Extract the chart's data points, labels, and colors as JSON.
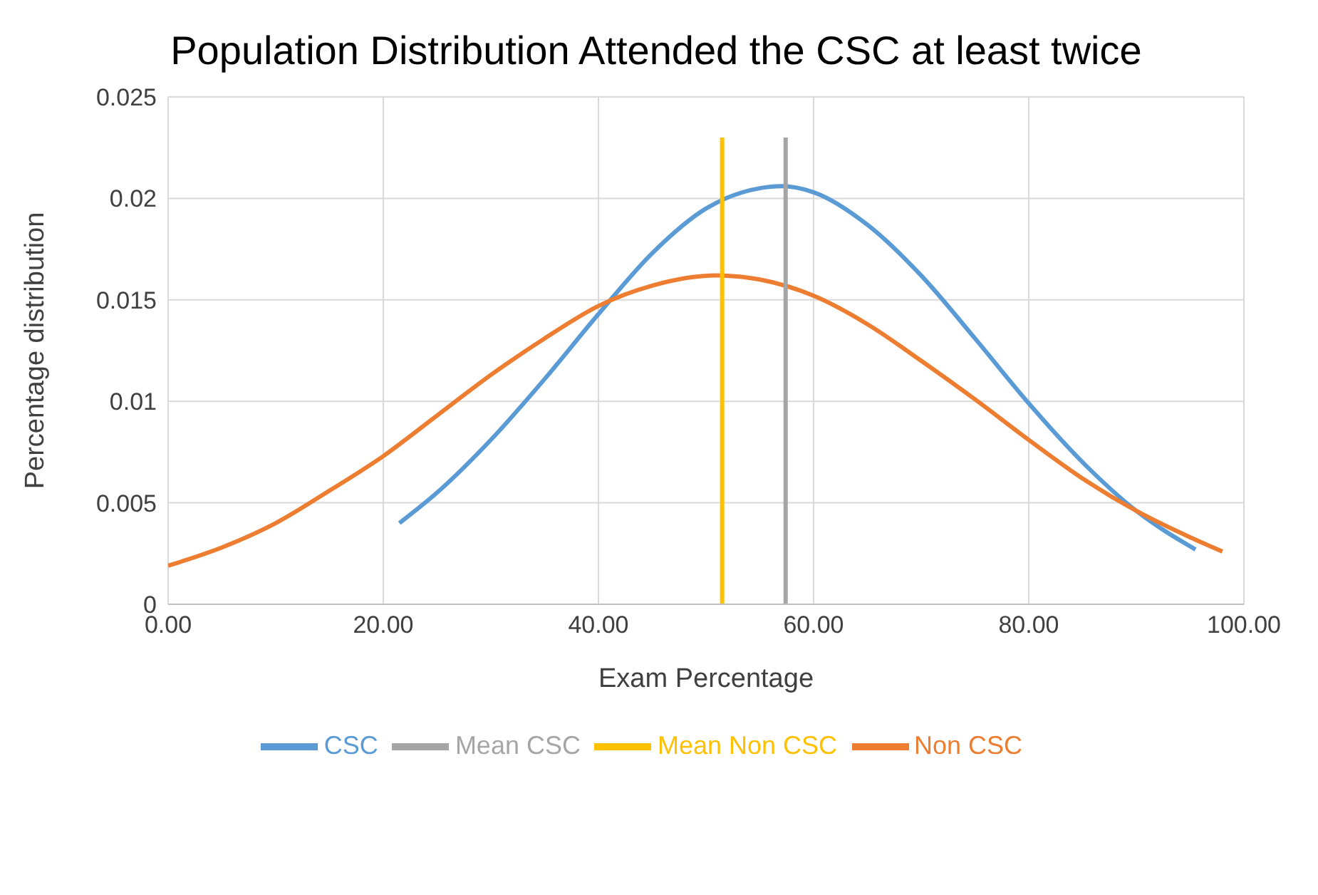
{
  "chart_data": {
    "type": "line",
    "title": "Population Distribution Attended the CSC at least twice",
    "xlabel": "Exam Percentage",
    "ylabel": "Percentage distribution",
    "xlim": [
      0,
      100
    ],
    "xticks": [
      {
        "value": 0,
        "label": "0.00"
      },
      {
        "value": 20,
        "label": "20.00"
      },
      {
        "value": 40,
        "label": "40.00"
      },
      {
        "value": 60,
        "label": "60.00"
      },
      {
        "value": 80,
        "label": "80.00"
      },
      {
        "value": 100,
        "label": "100.00"
      }
    ],
    "ylim": [
      0,
      0.025
    ],
    "yticks": [
      0,
      0.005,
      0.01,
      0.015,
      0.02,
      0.025
    ],
    "grid": true,
    "legend": "bottom",
    "marker": "none",
    "line_style": "solid",
    "series": [
      {
        "name": "CSC",
        "color": "#5b9bd5",
        "x": [
          21.5,
          25,
          30,
          35,
          40,
          45,
          50,
          55,
          57,
          60,
          65,
          70,
          75,
          80,
          85,
          90,
          95.5
        ],
        "values": [
          0.004,
          0.0055,
          0.0081,
          0.0111,
          0.0143,
          0.0173,
          0.0195,
          0.0205,
          0.0206,
          0.0203,
          0.0187,
          0.0162,
          0.0131,
          0.0099,
          0.007,
          0.0046,
          0.0027
        ]
      },
      {
        "name": "Non CSC",
        "color": "#ed7d31",
        "x": [
          0,
          5,
          10,
          15,
          20,
          25,
          30,
          35,
          40,
          45,
          51,
          55,
          60,
          65,
          70,
          75,
          80,
          85,
          90,
          95,
          98
        ],
        "values": [
          0.0019,
          0.0028,
          0.004,
          0.0056,
          0.0073,
          0.0093,
          0.0113,
          0.0131,
          0.0147,
          0.0157,
          0.0162,
          0.016,
          0.0152,
          0.0138,
          0.012,
          0.0101,
          0.0081,
          0.0062,
          0.0046,
          0.0033,
          0.0026
        ]
      },
      {
        "name": "Mean CSC",
        "color": "#a5a5a5",
        "x": [
          57.4,
          57.4
        ],
        "values": [
          0,
          0.023
        ]
      },
      {
        "name": "Mean Non CSC",
        "color": "#ffc000",
        "x": [
          51.5,
          51.5
        ],
        "values": [
          0,
          0.023
        ]
      }
    ]
  }
}
